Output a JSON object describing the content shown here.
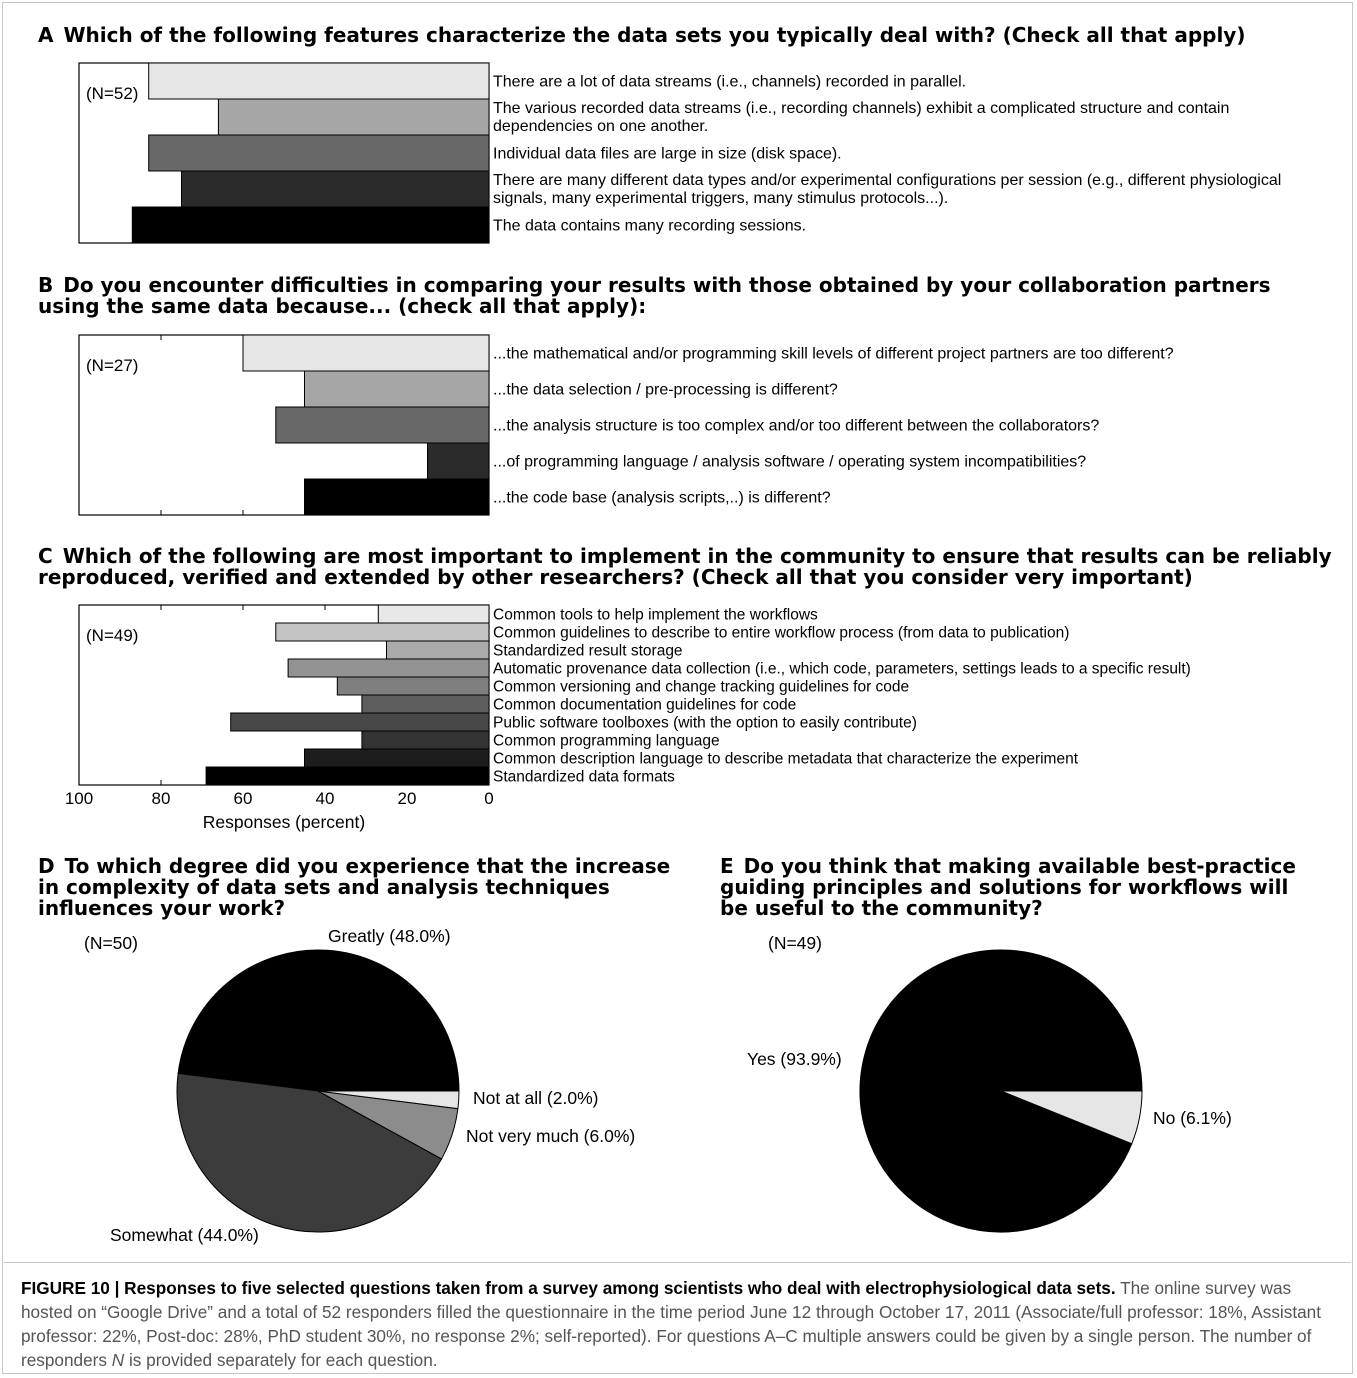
{
  "chart_data": [
    {
      "id": "A",
      "type": "bar",
      "orientation": "horizontal",
      "direction": "right-to-left",
      "letter": "A",
      "title": "Which of the following features characterize the data sets you typically deal with? (Check all that apply)",
      "n_label": "(N=52)",
      "xlim": [
        0,
        100
      ],
      "categories": [
        "There are a lot of data streams (i.e., channels) recorded in parallel.",
        "The various recorded data streams (i.e., recording channels) exhibit a complicated structure and contain\ndependencies on one another.",
        "Individual data files are large in size (disk space).",
        "There are many different data types and/or experimental configurations per session (e.g., different physiological\nsignals, many experimental triggers, many stimulus protocols...).",
        "The data contains many recording sessions."
      ],
      "values": [
        83,
        66,
        83,
        75,
        87
      ],
      "colors": [
        "#e6e6e6",
        "#a6a6a6",
        "#686868",
        "#2b2b2b",
        "#000000"
      ]
    },
    {
      "id": "B",
      "type": "bar",
      "orientation": "horizontal",
      "direction": "right-to-left",
      "letter": "B",
      "title": "Do you encounter difficulties in comparing your results with those obtained by your collaboration partners\nusing the same data because... (check all that apply):",
      "n_label": "(N=27)",
      "xlim": [
        0,
        100
      ],
      "categories": [
        "...the mathematical and/or programming skill levels of different project partners are too different?",
        "...the data selection / pre-processing is different?",
        "...the analysis structure is too complex and/or too different between the collaborators?",
        "...of programming language / analysis software / operating system incompatibilities?",
        "...the code base (analysis scripts,..) is different?"
      ],
      "values": [
        60,
        45,
        52,
        15,
        45
      ],
      "colors": [
        "#e6e6e6",
        "#a6a6a6",
        "#686868",
        "#2b2b2b",
        "#000000"
      ]
    },
    {
      "id": "C",
      "type": "bar",
      "orientation": "horizontal",
      "direction": "right-to-left",
      "letter": "C",
      "title": "Which of the following are most important to implement in the community to ensure that results can be reliably\nreproduced, verified and extended by other researchers? (Check all that you consider very important)",
      "n_label": "(N=49)",
      "xlim": [
        0,
        100
      ],
      "xticks": [
        "100",
        "80",
        "60",
        "40",
        "20",
        "0"
      ],
      "xlabel": "Responses (percent)",
      "categories": [
        "Common tools to help implement the workflows",
        "Common guidelines to describe to entire workflow process (from data to publication)",
        "Standardized result storage",
        "Automatic provenance data collection (i.e., which code, parameters, settings leads to a specific result)",
        "Common versioning and change tracking guidelines for code",
        "Common documentation guidelines for code",
        "Public software toolboxes (with the option to easily contribute)",
        "Common programming language",
        "Common description language to describe metadata that characterize the experiment",
        "Standardized data formats"
      ],
      "values": [
        27,
        52,
        25,
        49,
        37,
        31,
        63,
        31,
        45,
        69
      ],
      "colors": [
        "#e8e8e8",
        "#c4c4c4",
        "#aaaaaa",
        "#939393",
        "#7f7f7f",
        "#5e5e5e",
        "#484848",
        "#333333",
        "#1d1d1d",
        "#000000"
      ]
    },
    {
      "id": "D",
      "type": "pie",
      "letter": "D",
      "title": "To which degree did you experience that the increase\nin complexity of data sets and analysis techniques\ninfluences your work?",
      "n_label": "(N=50)",
      "slices": [
        {
          "label": "Greatly (48.0%)",
          "value": 48.0,
          "color": "#000000"
        },
        {
          "label": "Somewhat (44.0%)",
          "value": 44.0,
          "color": "#3c3c3c"
        },
        {
          "label": "Not very much (6.0%)",
          "value": 6.0,
          "color": "#8c8c8c"
        },
        {
          "label": "Not at all (2.0%)",
          "value": 2.0,
          "color": "#e6e6e6"
        }
      ]
    },
    {
      "id": "E",
      "type": "pie",
      "letter": "E",
      "title": "Do you think that making available best-practice\nguiding principles and solutions for workflows will\nbe useful to the community?",
      "n_label": "(N=49)",
      "slices": [
        {
          "label": "Yes (93.9%)",
          "value": 93.9,
          "color": "#000000"
        },
        {
          "label": "No (6.1%)",
          "value": 6.1,
          "color": "#e6e6e6"
        }
      ]
    }
  ],
  "caption": {
    "bold": "FIGURE 10 | Responses to five selected questions taken from a survey among scientists who deal with electrophysiological data sets.",
    "part1": " The online survey was hosted on “Google Drive” and a total of 52 responders filled the questionnaire in the time period June 12 through October 17, 2011 (Associate/full professor: 18%, Assistant professor: 22%, Post-doc: 28%, PhD student 30%, no response 2%; self-reported). For questions A–C multiple answers could be given by a single person. The number of responders ",
    "italic": "N",
    "part2": " is provided separately for each question."
  }
}
